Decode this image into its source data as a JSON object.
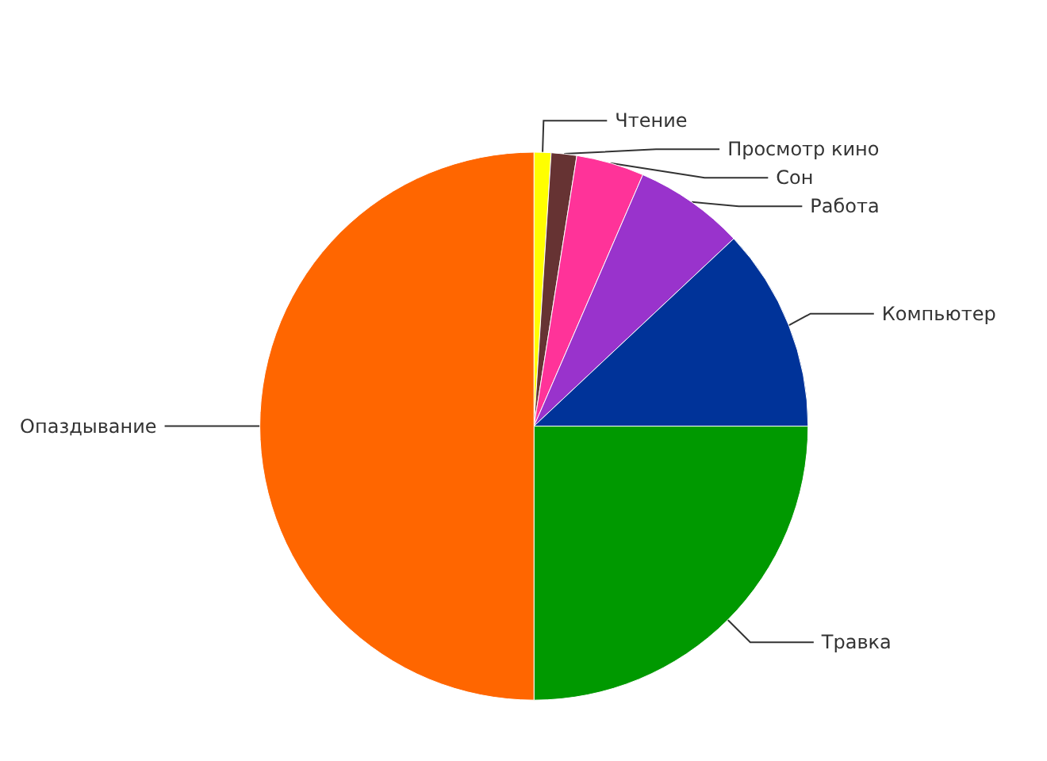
{
  "chart_data": {
    "type": "pie",
    "categories": [
      "Чтение",
      "Просмотр кино",
      "Сон",
      "Работа",
      "Компьютер",
      "Травка",
      "Опаздывание"
    ],
    "values": [
      1,
      1.5,
      4,
      6.5,
      12,
      25,
      50
    ],
    "colors": [
      "#ffff00",
      "#663333",
      "#ff3399",
      "#9933cc",
      "#003399",
      "#009900",
      "#ff6600"
    ],
    "legend": false
  }
}
